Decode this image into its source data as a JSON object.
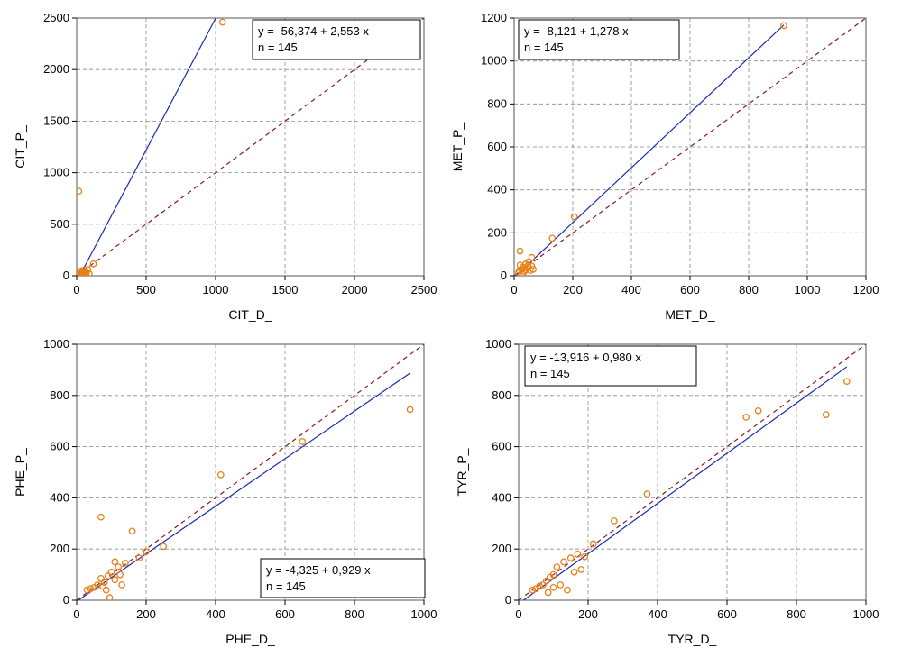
{
  "chart_data": [
    {
      "type": "scatter",
      "xlabel": "CIT_D_",
      "ylabel": "CIT_P_",
      "xlim": [
        0,
        2500
      ],
      "ylim": [
        0,
        2500
      ],
      "xticks": [
        "0",
        "500",
        "1000",
        "1500",
        "2000",
        "2500"
      ],
      "yticks": [
        "0",
        "500",
        "1000",
        "1500",
        "2000",
        "2500"
      ],
      "equation": "y = -56,374  +  2,553  x",
      "n_label": "n = 145",
      "legend_position": "top-right",
      "fit": {
        "intercept": -56.374,
        "slope": 2.553
      },
      "points": [
        {
          "x": 1050,
          "y": 2460
        },
        {
          "x": 15,
          "y": 820
        },
        {
          "x": 120,
          "y": 115
        },
        {
          "x": 80,
          "y": 60
        },
        {
          "x": 60,
          "y": 40
        },
        {
          "x": 50,
          "y": 55
        },
        {
          "x": 40,
          "y": 30
        },
        {
          "x": 30,
          "y": 45
        },
        {
          "x": 25,
          "y": 20
        },
        {
          "x": 35,
          "y": 10
        },
        {
          "x": 20,
          "y": 35
        },
        {
          "x": 45,
          "y": 15
        },
        {
          "x": 55,
          "y": 25
        },
        {
          "x": 65,
          "y": 10
        },
        {
          "x": 15,
          "y": 15
        },
        {
          "x": 10,
          "y": 5
        },
        {
          "x": 70,
          "y": 30
        },
        {
          "x": 90,
          "y": 20
        }
      ]
    },
    {
      "type": "scatter",
      "xlabel": "MET_D_",
      "ylabel": "MET_P_",
      "xlim": [
        0,
        1200
      ],
      "ylim": [
        0,
        1200
      ],
      "xticks": [
        "0",
        "200",
        "400",
        "600",
        "800",
        "1000",
        "1200"
      ],
      "yticks": [
        "0",
        "200",
        "400",
        "600",
        "800",
        "1000",
        "1200"
      ],
      "equation": "y = -8,121  +  1,278  x",
      "n_label": "n = 145",
      "legend_position": "top-left",
      "fit": {
        "intercept": -8.121,
        "slope": 1.278
      },
      "points": [
        {
          "x": 920,
          "y": 1165
        },
        {
          "x": 205,
          "y": 275
        },
        {
          "x": 130,
          "y": 175
        },
        {
          "x": 20,
          "y": 115
        },
        {
          "x": 60,
          "y": 85
        },
        {
          "x": 50,
          "y": 65
        },
        {
          "x": 40,
          "y": 55
        },
        {
          "x": 30,
          "y": 40
        },
        {
          "x": 25,
          "y": 30
        },
        {
          "x": 35,
          "y": 20
        },
        {
          "x": 45,
          "y": 35
        },
        {
          "x": 55,
          "y": 25
        },
        {
          "x": 15,
          "y": 15
        },
        {
          "x": 20,
          "y": 50
        },
        {
          "x": 60,
          "y": 45
        },
        {
          "x": 65,
          "y": 30
        },
        {
          "x": 28,
          "y": 10
        },
        {
          "x": 38,
          "y": 28
        },
        {
          "x": 48,
          "y": 48
        },
        {
          "x": 18,
          "y": 25
        }
      ]
    },
    {
      "type": "scatter",
      "xlabel": "PHE_D_",
      "ylabel": "PHE_P_",
      "xlim": [
        0,
        1000
      ],
      "ylim": [
        0,
        1000
      ],
      "xticks": [
        "0",
        "200",
        "400",
        "600",
        "800",
        "1000"
      ],
      "yticks": [
        "0",
        "200",
        "400",
        "600",
        "800",
        "1000"
      ],
      "equation": "y = -4,325  +  0,929  x",
      "n_label": "n = 145",
      "legend_position": "bottom-right",
      "fit": {
        "intercept": -4.325,
        "slope": 0.929
      },
      "points": [
        {
          "x": 960,
          "y": 745
        },
        {
          "x": 650,
          "y": 620
        },
        {
          "x": 415,
          "y": 490
        },
        {
          "x": 70,
          "y": 325
        },
        {
          "x": 160,
          "y": 270
        },
        {
          "x": 250,
          "y": 210
        },
        {
          "x": 200,
          "y": 190
        },
        {
          "x": 180,
          "y": 165
        },
        {
          "x": 140,
          "y": 145
        },
        {
          "x": 120,
          "y": 130
        },
        {
          "x": 110,
          "y": 150
        },
        {
          "x": 100,
          "y": 110
        },
        {
          "x": 90,
          "y": 95
        },
        {
          "x": 80,
          "y": 70
        },
        {
          "x": 70,
          "y": 85
        },
        {
          "x": 60,
          "y": 60
        },
        {
          "x": 50,
          "y": 50
        },
        {
          "x": 40,
          "y": 45
        },
        {
          "x": 30,
          "y": 40
        },
        {
          "x": 95,
          "y": 10
        },
        {
          "x": 130,
          "y": 60
        },
        {
          "x": 85,
          "y": 40
        },
        {
          "x": 110,
          "y": 80
        },
        {
          "x": 75,
          "y": 55
        },
        {
          "x": 125,
          "y": 100
        }
      ]
    },
    {
      "type": "scatter",
      "xlabel": "TYR_D_",
      "ylabel": "TYR_P_",
      "xlim": [
        0,
        1000
      ],
      "ylim": [
        0,
        1000
      ],
      "xticks": [
        "0",
        "200",
        "400",
        "600",
        "800",
        "1000"
      ],
      "yticks": [
        "0",
        "200",
        "400",
        "600",
        "800",
        "1000"
      ],
      "equation": "y = -13,916  +  0,980  x",
      "n_label": "n = 145",
      "legend_position": "top-left",
      "fit": {
        "intercept": -13.916,
        "slope": 0.98
      },
      "points": [
        {
          "x": 945,
          "y": 855
        },
        {
          "x": 885,
          "y": 725
        },
        {
          "x": 690,
          "y": 740
        },
        {
          "x": 655,
          "y": 715
        },
        {
          "x": 370,
          "y": 415
        },
        {
          "x": 275,
          "y": 310
        },
        {
          "x": 215,
          "y": 220
        },
        {
          "x": 190,
          "y": 170
        },
        {
          "x": 170,
          "y": 180
        },
        {
          "x": 150,
          "y": 165
        },
        {
          "x": 130,
          "y": 150
        },
        {
          "x": 110,
          "y": 130
        },
        {
          "x": 100,
          "y": 100
        },
        {
          "x": 90,
          "y": 90
        },
        {
          "x": 80,
          "y": 75
        },
        {
          "x": 70,
          "y": 60
        },
        {
          "x": 60,
          "y": 55
        },
        {
          "x": 50,
          "y": 45
        },
        {
          "x": 40,
          "y": 40
        },
        {
          "x": 120,
          "y": 60
        },
        {
          "x": 140,
          "y": 40
        },
        {
          "x": 160,
          "y": 110
        },
        {
          "x": 100,
          "y": 50
        },
        {
          "x": 85,
          "y": 30
        },
        {
          "x": 180,
          "y": 120
        }
      ]
    }
  ]
}
